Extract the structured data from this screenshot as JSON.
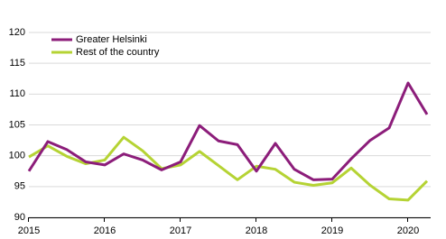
{
  "chart_data": {
    "type": "line",
    "categories": [
      "2015",
      null,
      null,
      null,
      "2016",
      null,
      null,
      null,
      "2017",
      null,
      null,
      null,
      "2018",
      null,
      null,
      null,
      "2019",
      null,
      null,
      null,
      "2020",
      null
    ],
    "series": [
      {
        "name": "Greater Helsinki",
        "color": "#8c1d7a",
        "values": [
          97.5,
          102.3,
          101,
          99,
          98.5,
          100.3,
          99.3,
          97.7,
          99,
          104.9,
          102.4,
          101.8,
          97.5,
          102,
          97.8,
          96.1,
          96.2,
          99.5,
          102.5,
          104.5,
          111.8,
          106.7
        ]
      },
      {
        "name": "Rest of the country",
        "color": "#b5d334",
        "values": [
          99.8,
          101.6,
          99.9,
          98.7,
          99.3,
          103,
          100.8,
          97.9,
          98.5,
          100.7,
          98.4,
          96.1,
          98.3,
          97.8,
          95.7,
          95.2,
          95.6,
          98,
          95.2,
          93,
          92.8,
          95.9
        ]
      }
    ],
    "ylim": [
      90,
      120
    ],
    "yticks": [
      90,
      95,
      100,
      105,
      110,
      115,
      120
    ],
    "grid": true,
    "legend": "top-left"
  }
}
